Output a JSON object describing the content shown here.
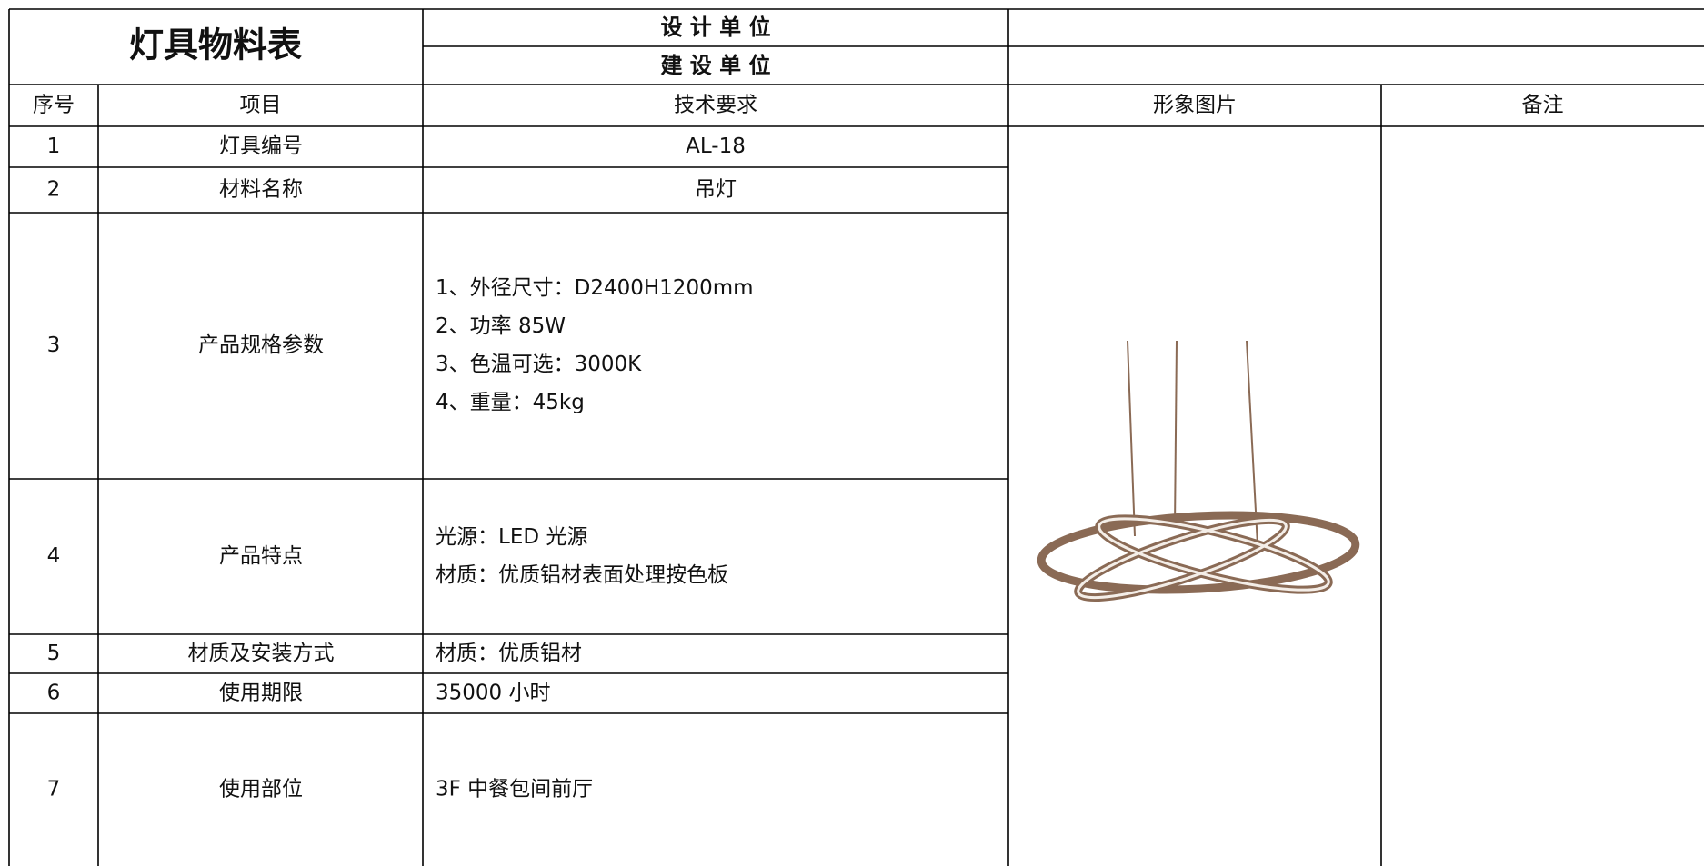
{
  "header": {
    "title": "灯具物料表",
    "design_unit": "设 计 单 位",
    "construction_unit": "建 设 单 位"
  },
  "table": {
    "columns": [
      "序号",
      "项目",
      "技术要求",
      "形象图片",
      "备注"
    ],
    "rows": [
      {
        "no": "1",
        "item": "灯具编号",
        "spec": [
          "AL-18"
        ]
      },
      {
        "no": "2",
        "item": "材料名称",
        "spec": [
          "吊灯"
        ]
      },
      {
        "no": "3",
        "item": "产品规格参数",
        "spec": [
          "1、外径尺寸：D2400H1200mm",
          "2、功率 85W",
          "3、色温可选：3000K",
          "4、重量：45kg"
        ]
      },
      {
        "no": "4",
        "item": "产品特点",
        "spec": [
          "光源：LED 光源",
          "材质：优质铝材表面处理按色板"
        ]
      },
      {
        "no": "5",
        "item": "材质及安装方式",
        "spec": [
          "材质：优质铝材"
        ]
      },
      {
        "no": "6",
        "item": "使用期限",
        "spec": [
          "35000 小时"
        ]
      },
      {
        "no": "7",
        "item": "使用部位",
        "spec": [
          "3F 中餐包间前厅"
        ]
      }
    ]
  }
}
